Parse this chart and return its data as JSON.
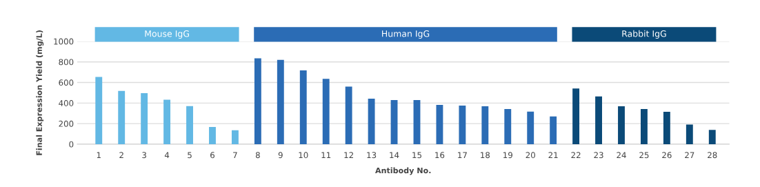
{
  "chart_data": {
    "type": "bar",
    "xlabel": "Antibody No.",
    "ylabel": "Final Expression Yield (mg/L)",
    "categories": [
      "1",
      "2",
      "3",
      "4",
      "5",
      "6",
      "7",
      "8",
      "9",
      "10",
      "11",
      "12",
      "13",
      "14",
      "15",
      "16",
      "17",
      "18",
      "19",
      "20",
      "21",
      "22",
      "23",
      "24",
      "25",
      "26",
      "27",
      "28"
    ],
    "series": [
      {
        "name": "Mouse IgG",
        "color": "#62b8e4",
        "values": [
          654,
          518,
          496,
          433,
          371,
          167,
          136,
          null,
          null,
          null,
          null,
          null,
          null,
          null,
          null,
          null,
          null,
          null,
          null,
          null,
          null,
          null,
          null,
          null,
          null,
          null,
          null,
          null
        ]
      },
      {
        "name": "Human IgG",
        "color": "#2b6cb5",
        "values": [
          null,
          null,
          null,
          null,
          null,
          null,
          null,
          835,
          819,
          717,
          636,
          560,
          442,
          429,
          429,
          382,
          375,
          368,
          342,
          317,
          270,
          null,
          null,
          null,
          null,
          null,
          null,
          null
        ]
      },
      {
        "name": "Rabbit IgG",
        "color": "#0b4a78",
        "values": [
          null,
          null,
          null,
          null,
          null,
          null,
          null,
          null,
          null,
          null,
          null,
          null,
          null,
          null,
          null,
          null,
          null,
          null,
          null,
          null,
          null,
          542,
          464,
          368,
          342,
          315,
          190,
          138
        ]
      }
    ],
    "ylim": [
      0,
      1000
    ],
    "yticks": [
      0,
      200,
      400,
      600,
      800,
      1000
    ],
    "grid": "y"
  }
}
